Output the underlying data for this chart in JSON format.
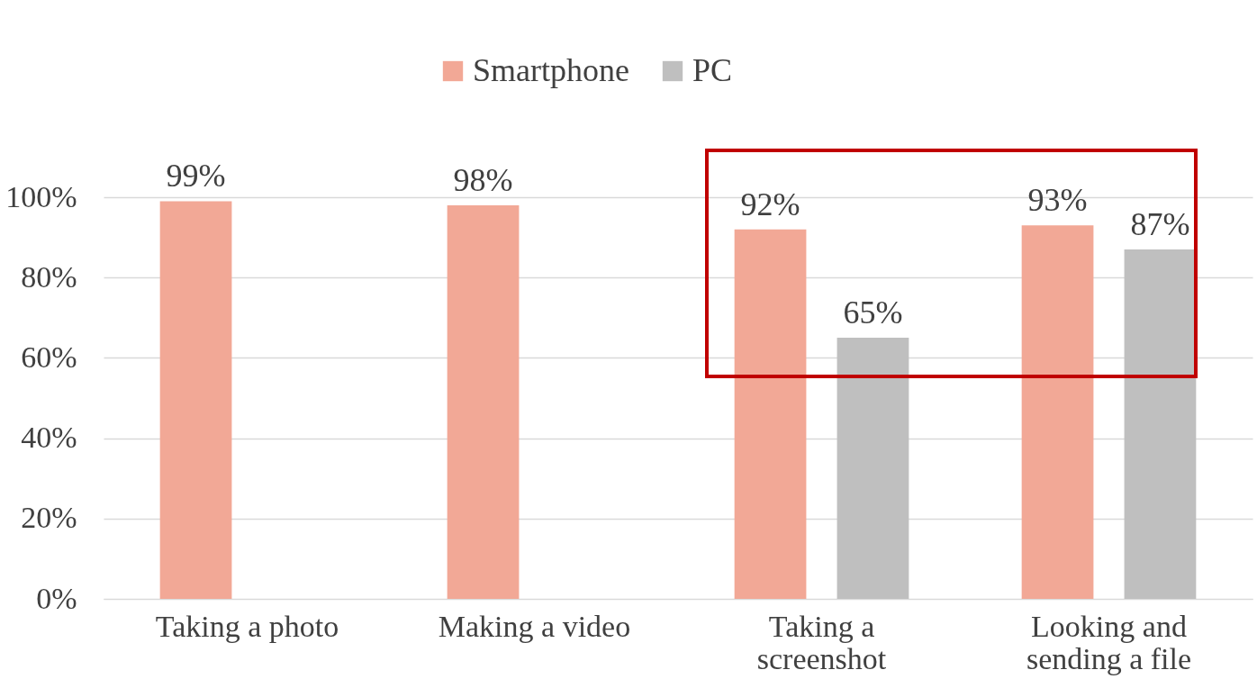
{
  "chart_data": {
    "type": "bar",
    "categories": [
      "Taking  a photo",
      "Making a video",
      "Taking a\nscreenshot",
      "Looking and\nsending a file"
    ],
    "series": [
      {
        "name": "Smartphone",
        "color": "#f2a896",
        "values": [
          99,
          98,
          92,
          93
        ]
      },
      {
        "name": "PC",
        "color": "#bfbfbf",
        "values": [
          null,
          null,
          65,
          87
        ]
      }
    ],
    "ylim": [
      0,
      100
    ],
    "yticks": [
      {
        "value": 0,
        "label": "0%"
      },
      {
        "value": 20,
        "label": "20%"
      },
      {
        "value": 40,
        "label": "40%"
      },
      {
        "value": 60,
        "label": "60%"
      },
      {
        "value": 80,
        "label": "80%"
      },
      {
        "value": 100,
        "label": "100%"
      }
    ],
    "value_labels": [
      [
        "99%",
        "98%",
        "92%",
        "93%"
      ],
      [
        null,
        null,
        "65%",
        "87%"
      ]
    ],
    "grid": "y",
    "legend": "top"
  }
}
